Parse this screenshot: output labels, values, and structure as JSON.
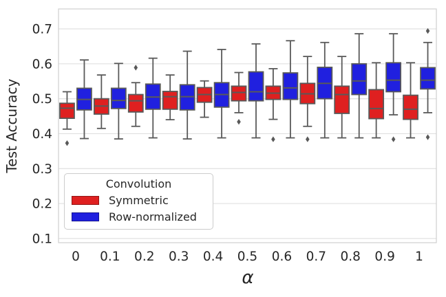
{
  "figure": {
    "ylabel": "Test Accuracy",
    "xlabel": "α",
    "legend": {
      "title": "Convolution",
      "items": [
        {
          "label": "Symmetric"
        },
        {
          "label": "Row-normalized"
        }
      ]
    }
  },
  "chart_data": {
    "type": "boxplot",
    "title": "",
    "xlabel": "α",
    "ylabel": "Test Accuracy",
    "grid": true,
    "legend_position": "lower-left",
    "categories": [
      "0",
      "0.1",
      "0.2",
      "0.3",
      "0.4",
      "0.5",
      "0.6",
      "0.7",
      "0.8",
      "0.9",
      "1"
    ],
    "yticks": [
      0.1,
      0.2,
      0.3,
      0.4,
      0.5,
      0.6,
      0.7
    ],
    "ytick_labels": [
      "0.1",
      "0.2",
      "0.3",
      "0.4",
      "0.5",
      "0.6",
      "0.7"
    ],
    "ylim": [
      0.088,
      0.757
    ],
    "colors": {
      "edge": "#595959",
      "grid": "#e0e0e0",
      "spine": "#cfcfcf",
      "text": "#262626",
      "flier": "#595959"
    },
    "series": [
      {
        "name": "Symmetric",
        "color": "#df2020",
        "boxes": [
          {
            "whislo": 0.413,
            "q1": 0.444,
            "med": 0.473,
            "q3": 0.487,
            "whishi": 0.52,
            "fliers": [
              0.373
            ]
          },
          {
            "whislo": 0.415,
            "q1": 0.456,
            "med": 0.479,
            "q3": 0.5,
            "whishi": 0.568,
            "fliers": []
          },
          {
            "whislo": 0.421,
            "q1": 0.462,
            "med": 0.494,
            "q3": 0.512,
            "whishi": 0.546,
            "fliers": [
              0.589
            ]
          },
          {
            "whislo": 0.44,
            "q1": 0.47,
            "med": 0.506,
            "q3": 0.521,
            "whishi": 0.568,
            "fliers": []
          },
          {
            "whislo": 0.447,
            "q1": 0.49,
            "med": 0.512,
            "q3": 0.532,
            "whishi": 0.551,
            "fliers": []
          },
          {
            "whislo": 0.46,
            "q1": 0.494,
            "med": 0.518,
            "q3": 0.536,
            "whishi": 0.575,
            "fliers": [
              0.434
            ]
          },
          {
            "whislo": 0.441,
            "q1": 0.498,
            "med": 0.516,
            "q3": 0.536,
            "whishi": 0.586,
            "fliers": [
              0.384
            ]
          },
          {
            "whislo": 0.421,
            "q1": 0.486,
            "med": 0.514,
            "q3": 0.544,
            "whishi": 0.621,
            "fliers": [
              0.384
            ]
          },
          {
            "whislo": 0.388,
            "q1": 0.458,
            "med": 0.512,
            "q3": 0.536,
            "whishi": 0.621,
            "fliers": []
          },
          {
            "whislo": 0.388,
            "q1": 0.443,
            "med": 0.472,
            "q3": 0.526,
            "whishi": 0.603,
            "fliers": []
          },
          {
            "whislo": 0.388,
            "q1": 0.441,
            "med": 0.47,
            "q3": 0.51,
            "whishi": 0.603,
            "fliers": []
          }
        ]
      },
      {
        "name": "Row-normalized",
        "color": "#2020df",
        "boxes": [
          {
            "whislo": 0.386,
            "q1": 0.468,
            "med": 0.498,
            "q3": 0.53,
            "whishi": 0.611,
            "fliers": []
          },
          {
            "whislo": 0.385,
            "q1": 0.472,
            "med": 0.495,
            "q3": 0.53,
            "whishi": 0.601,
            "fliers": []
          },
          {
            "whislo": 0.388,
            "q1": 0.47,
            "med": 0.505,
            "q3": 0.542,
            "whishi": 0.616,
            "fliers": []
          },
          {
            "whislo": 0.385,
            "q1": 0.468,
            "med": 0.506,
            "q3": 0.54,
            "whishi": 0.636,
            "fliers": []
          },
          {
            "whislo": 0.388,
            "q1": 0.476,
            "med": 0.512,
            "q3": 0.546,
            "whishi": 0.641,
            "fliers": []
          },
          {
            "whislo": 0.388,
            "q1": 0.494,
            "med": 0.52,
            "q3": 0.577,
            "whishi": 0.657,
            "fliers": []
          },
          {
            "whislo": 0.388,
            "q1": 0.498,
            "med": 0.531,
            "q3": 0.574,
            "whishi": 0.666,
            "fliers": []
          },
          {
            "whislo": 0.388,
            "q1": 0.5,
            "med": 0.544,
            "q3": 0.59,
            "whishi": 0.661,
            "fliers": []
          },
          {
            "whislo": 0.388,
            "q1": 0.512,
            "med": 0.551,
            "q3": 0.6,
            "whishi": 0.686,
            "fliers": []
          },
          {
            "whislo": 0.454,
            "q1": 0.52,
            "med": 0.553,
            "q3": 0.603,
            "whishi": 0.686,
            "fliers": [
              0.384
            ]
          },
          {
            "whislo": 0.46,
            "q1": 0.528,
            "med": 0.553,
            "q3": 0.589,
            "whishi": 0.661,
            "fliers": [
              0.694,
              0.39
            ]
          }
        ]
      }
    ]
  }
}
